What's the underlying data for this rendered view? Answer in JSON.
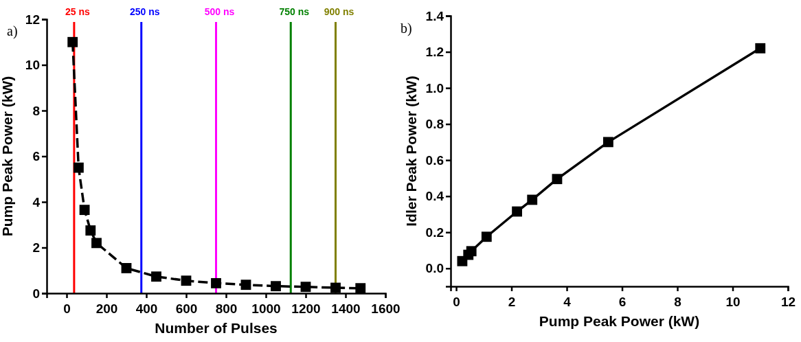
{
  "chart_data": [
    {
      "type": "line",
      "xlabel": "Number of Pulses",
      "ylabel": "Pump Peak Power (kW)",
      "annotations": [
        "a)"
      ],
      "series": [
        {
          "color": "#000000",
          "x": [
            30,
            60,
            90,
            120,
            150,
            300,
            450,
            600,
            750,
            900,
            1050,
            1200,
            1350,
            1475
          ],
          "values": [
            11.0,
            5.5,
            3.65,
            2.75,
            2.2,
            1.1,
            0.73,
            0.55,
            0.44,
            0.37,
            0.31,
            0.28,
            0.24,
            0.22
          ]
        }
      ],
      "xlim": [
        -100,
        1600
      ],
      "xticks": [
        0,
        200,
        400,
        600,
        800,
        1000,
        1200,
        1400,
        1600
      ],
      "ylim": [
        0,
        12
      ],
      "yticks": [
        0,
        2,
        4,
        6,
        8,
        10,
        12
      ],
      "marker": "square",
      "line_style": "dashed",
      "ref_lines": [
        {
          "axis": "x",
          "value": 37.5,
          "label": "25 ns",
          "color": "#ff0000"
        },
        {
          "axis": "x",
          "value": 375,
          "label": "250 ns",
          "color": "#0000ff"
        },
        {
          "axis": "x",
          "value": 750,
          "label": "500 ns",
          "color": "#ff00ff"
        },
        {
          "axis": "x",
          "value": 1125,
          "label": "750 ns",
          "color": "#008000"
        },
        {
          "axis": "x",
          "value": 1350,
          "label": "900 ns",
          "color": "#808000"
        }
      ]
    },
    {
      "type": "line",
      "xlabel": "Pump Peak Power (kW)",
      "ylabel": "Idler Peak Power (kW)",
      "annotations": [
        "b)"
      ],
      "series": [
        {
          "color": "#000000",
          "x": [
            0.22,
            0.44,
            0.55,
            1.1,
            2.2,
            2.75,
            3.65,
            5.5,
            11.0
          ],
          "values": [
            0.04,
            0.075,
            0.095,
            0.175,
            0.315,
            0.38,
            0.495,
            0.7,
            1.22
          ]
        }
      ],
      "xlim": [
        -0.2,
        12
      ],
      "xticks": [
        0,
        2,
        4,
        6,
        8,
        10,
        12
      ],
      "ylim": [
        -0.1,
        1.4
      ],
      "yticks": [
        {
          "value": 0,
          "label": "0.0"
        },
        0.2,
        0.4,
        0.6,
        0.8,
        {
          "value": 1,
          "label": "1.0"
        },
        1.2,
        1.4
      ],
      "marker": "square",
      "line_style": "solid"
    }
  ]
}
